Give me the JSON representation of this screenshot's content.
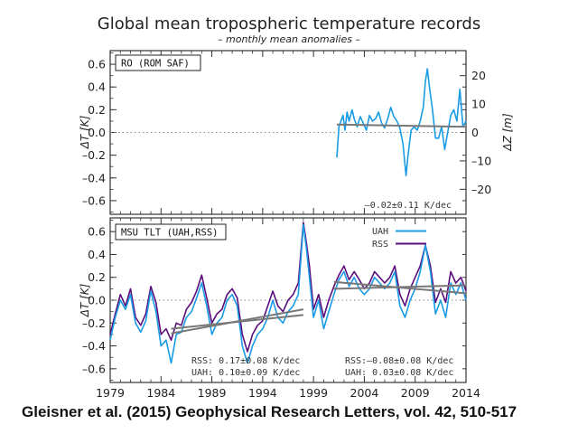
{
  "figure": {
    "title": "Global mean tropospheric temperature records",
    "subtitle": "– monthly mean anomalies –",
    "citation": "Gleisner et al. (2015) Geophysical Research Letters, vol. 42, 510-517",
    "colors": {
      "uah": "#1a9be6",
      "rss": "#5a0d7a",
      "trend": "#777777",
      "zero_line": "#888888"
    }
  },
  "chart_data": [
    {
      "type": "line",
      "panel_label": "RO (ROM SAF)",
      "ylabel": "ΔT [K]",
      "y2label": "ΔZ [m]",
      "xlim": [
        1979,
        2014
      ],
      "ylim": [
        -0.72,
        0.72
      ],
      "y2lim": [
        -28.8,
        28.8
      ],
      "yticks": [
        -0.6,
        -0.4,
        -0.2,
        0.0,
        0.2,
        0.4,
        0.6
      ],
      "ytick_labels": [
        "–0.6",
        "–0.4",
        "–0.2",
        "0.0",
        "0.2",
        "0.4",
        "0.6"
      ],
      "y2ticks": [
        -20,
        -10,
        0,
        10,
        20
      ],
      "y2tick_labels": [
        "–20",
        "–10",
        "0",
        "10",
        "20"
      ],
      "zero_line": true,
      "annotation": "–0.02±0.11 K/dec",
      "series": [
        {
          "color": "#1a9be6",
          "x": [
            2001.3,
            2001.5,
            2001.7,
            2001.9,
            2002.1,
            2002.3,
            2002.5,
            2002.8,
            2003.0,
            2003.3,
            2003.6,
            2003.9,
            2004.2,
            2004.5,
            2004.8,
            2005.1,
            2005.4,
            2005.7,
            2006.0,
            2006.3,
            2006.6,
            2006.9,
            2007.2,
            2007.5,
            2007.8,
            2008.1,
            2008.3,
            2008.6,
            2008.9,
            2009.2,
            2009.5,
            2009.8,
            2010.0,
            2010.2,
            2010.4,
            2010.7,
            2011.0,
            2011.3,
            2011.6,
            2011.9,
            2012.2,
            2012.5,
            2012.8,
            2013.1,
            2013.4,
            2013.7,
            2014.0
          ],
          "y": [
            -0.22,
            0.05,
            0.1,
            0.15,
            0.02,
            0.18,
            0.1,
            0.2,
            0.12,
            0.05,
            0.14,
            0.08,
            0.02,
            0.15,
            0.1,
            0.12,
            0.18,
            0.08,
            0.04,
            0.12,
            0.22,
            0.14,
            0.1,
            0.04,
            -0.1,
            -0.38,
            -0.2,
            0.02,
            0.05,
            0.02,
            0.1,
            0.22,
            0.45,
            0.56,
            0.4,
            0.2,
            -0.05,
            -0.05,
            0.05,
            -0.15,
            0.0,
            0.15,
            0.2,
            0.1,
            0.38,
            0.05,
            0.1
          ]
        },
        {
          "color": "#777777",
          "x": [
            2001.3,
            2014.0
          ],
          "y": [
            0.07,
            0.05
          ]
        }
      ]
    },
    {
      "type": "line",
      "panel_label": "MSU TLT (UAH,RSS)",
      "ylabel": "ΔT [K]",
      "xlim": [
        1979,
        2014
      ],
      "ylim": [
        -0.72,
        0.72
      ],
      "yticks": [
        -0.6,
        -0.4,
        -0.2,
        0.0,
        0.2,
        0.4,
        0.6
      ],
      "ytick_labels": [
        "–0.6",
        "–0.4",
        "–0.2",
        "0.0",
        "0.2",
        "0.4",
        "0.6"
      ],
      "xticks": [
        1979,
        1984,
        1989,
        1994,
        1999,
        2004,
        2009,
        2014
      ],
      "zero_line": true,
      "legend": {
        "position": "top-right",
        "entries": [
          "UAH",
          "RSS"
        ]
      },
      "annotations": [
        {
          "text": "RSS: 0.17±0.08 K/dec"
        },
        {
          "text": "UAH: 0.10±0.09 K/dec"
        },
        {
          "text": "RSS:–0.08±0.08 K/dec"
        },
        {
          "text": "UAH: 0.03±0.08 K/dec"
        }
      ],
      "series": [
        {
          "name": "RSS",
          "color": "#5a0d7a",
          "x": [
            1979.0,
            1979.5,
            1980.0,
            1980.5,
            1981.0,
            1981.5,
            1982.0,
            1982.5,
            1983.0,
            1983.5,
            1984.0,
            1984.5,
            1985.0,
            1985.5,
            1986.0,
            1986.5,
            1987.0,
            1987.5,
            1988.0,
            1988.5,
            1989.0,
            1989.5,
            1990.0,
            1990.5,
            1991.0,
            1991.5,
            1992.0,
            1992.5,
            1993.0,
            1993.5,
            1994.0,
            1994.5,
            1995.0,
            1995.5,
            1996.0,
            1996.5,
            1997.0,
            1997.5,
            1998.0,
            1998.3,
            1998.6,
            1999.0,
            1999.5,
            2000.0,
            2000.5,
            2001.0,
            2001.5,
            2002.0,
            2002.5,
            2003.0,
            2003.5,
            2004.0,
            2004.5,
            2005.0,
            2005.5,
            2006.0,
            2006.5,
            2007.0,
            2007.5,
            2008.0,
            2008.5,
            2009.0,
            2009.5,
            2010.0,
            2010.5,
            2011.0,
            2011.5,
            2012.0,
            2012.5,
            2013.0,
            2013.5,
            2014.0
          ],
          "y": [
            -0.3,
            -0.12,
            0.05,
            -0.05,
            0.1,
            -0.15,
            -0.22,
            -0.12,
            0.12,
            -0.02,
            -0.3,
            -0.25,
            -0.35,
            -0.2,
            -0.22,
            -0.08,
            -0.02,
            0.08,
            0.22,
            0.02,
            -0.2,
            -0.12,
            -0.08,
            0.05,
            0.1,
            0.02,
            -0.3,
            -0.45,
            -0.3,
            -0.22,
            -0.18,
            -0.05,
            0.08,
            -0.05,
            -0.1,
            0.0,
            0.05,
            0.15,
            0.68,
            0.5,
            0.3,
            -0.08,
            0.05,
            -0.15,
            0.0,
            0.12,
            0.22,
            0.3,
            0.18,
            0.25,
            0.18,
            0.1,
            0.15,
            0.25,
            0.2,
            0.15,
            0.2,
            0.3,
            0.05,
            -0.05,
            0.1,
            0.2,
            0.3,
            0.48,
            0.3,
            -0.02,
            0.1,
            -0.02,
            0.25,
            0.15,
            0.2,
            0.08
          ]
        },
        {
          "name": "UAH",
          "color": "#1a9be6",
          "x": [
            1979.0,
            1979.5,
            1980.0,
            1980.5,
            1981.0,
            1981.5,
            1982.0,
            1982.5,
            1983.0,
            1983.5,
            1984.0,
            1984.5,
            1985.0,
            1985.5,
            1986.0,
            1986.5,
            1987.0,
            1987.5,
            1988.0,
            1988.5,
            1989.0,
            1989.5,
            1990.0,
            1990.5,
            1991.0,
            1991.5,
            1992.0,
            1992.5,
            1993.0,
            1993.5,
            1994.0,
            1994.5,
            1995.0,
            1995.5,
            1996.0,
            1996.5,
            1997.0,
            1997.5,
            1998.0,
            1998.3,
            1998.6,
            1999.0,
            1999.5,
            2000.0,
            2000.5,
            2001.0,
            2001.5,
            2002.0,
            2002.5,
            2003.0,
            2003.5,
            2004.0,
            2004.5,
            2005.0,
            2005.5,
            2006.0,
            2006.5,
            2007.0,
            2007.5,
            2008.0,
            2008.5,
            2009.0,
            2009.5,
            2010.0,
            2010.5,
            2011.0,
            2011.5,
            2012.0,
            2012.5,
            2013.0,
            2013.5,
            2014.0
          ],
          "y": [
            -0.35,
            -0.15,
            0.0,
            -0.08,
            0.05,
            -0.2,
            -0.28,
            -0.18,
            0.08,
            -0.1,
            -0.4,
            -0.35,
            -0.55,
            -0.3,
            -0.28,
            -0.15,
            -0.1,
            0.02,
            0.15,
            -0.05,
            -0.3,
            -0.2,
            -0.15,
            0.0,
            0.05,
            -0.05,
            -0.4,
            -0.55,
            -0.4,
            -0.3,
            -0.25,
            -0.15,
            0.0,
            -0.15,
            -0.2,
            -0.1,
            -0.05,
            0.05,
            0.66,
            0.45,
            0.2,
            -0.15,
            0.0,
            -0.25,
            -0.1,
            0.05,
            0.18,
            0.25,
            0.12,
            0.2,
            0.1,
            0.05,
            0.1,
            0.2,
            0.15,
            0.1,
            0.15,
            0.25,
            -0.05,
            -0.15,
            0.0,
            0.1,
            0.25,
            0.48,
            0.25,
            -0.12,
            0.0,
            -0.15,
            0.15,
            0.05,
            0.15,
            0.0
          ]
        },
        {
          "color": "#777777",
          "x": [
            1985.0,
            1998.0
          ],
          "y": [
            -0.29,
            -0.08
          ]
        },
        {
          "color": "#777777",
          "x": [
            1985.0,
            1998.0
          ],
          "y": [
            -0.25,
            -0.13
          ]
        },
        {
          "color": "#777777",
          "x": [
            2001.0,
            2014.0
          ],
          "y": [
            0.16,
            0.06
          ]
        },
        {
          "color": "#777777",
          "x": [
            2001.0,
            2014.0
          ],
          "y": [
            0.1,
            0.13
          ]
        }
      ]
    }
  ]
}
